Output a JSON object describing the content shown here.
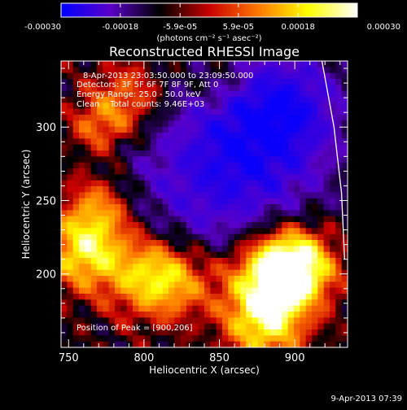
{
  "chart_data": {
    "type": "heatmap",
    "title": "Reconstructed RHESSI Image",
    "xlabel": "Heliocentric X (arcsec)",
    "ylabel": "Heliocentric Y (arcsec)",
    "xlim": [
      745,
      935
    ],
    "ylim": [
      150,
      345
    ],
    "x_ticks": [
      750,
      800,
      850,
      900
    ],
    "y_ticks": [
      200,
      250,
      300
    ],
    "colorbar": {
      "units_label": "(photons cm⁻² s⁻¹ asec⁻²)",
      "range": [
        -0.0003,
        0.0003
      ],
      "tick_labels": [
        "-0.00030",
        "-0.00018",
        "-5.9e-05",
        "5.9e-05",
        "0.00018",
        "0.00030"
      ],
      "stops": [
        "#0000ff",
        "#5a00c8",
        "#000000",
        "#c80000",
        "#ff7800",
        "#ffff00",
        "#ffffff"
      ]
    },
    "annotations": [
      "8-Apr-2013 23:03:50.000 to 23:09:50.000",
      "Detectors: 3F 5F 6F 7F 8F 9F, Att 0",
      "Energy Range: 25.0 - 50.0 keV",
      "Clean    Total counts: 9.46E+03"
    ],
    "peak_label": "Position of Peak = [900,206]",
    "peak": [
      900,
      206
    ],
    "limb_curve": [
      [
        918,
        345
      ],
      [
        926,
        300
      ],
      [
        931,
        255
      ],
      [
        933,
        210
      ]
    ]
  },
  "timestamp": "9-Apr-2013 07:39"
}
